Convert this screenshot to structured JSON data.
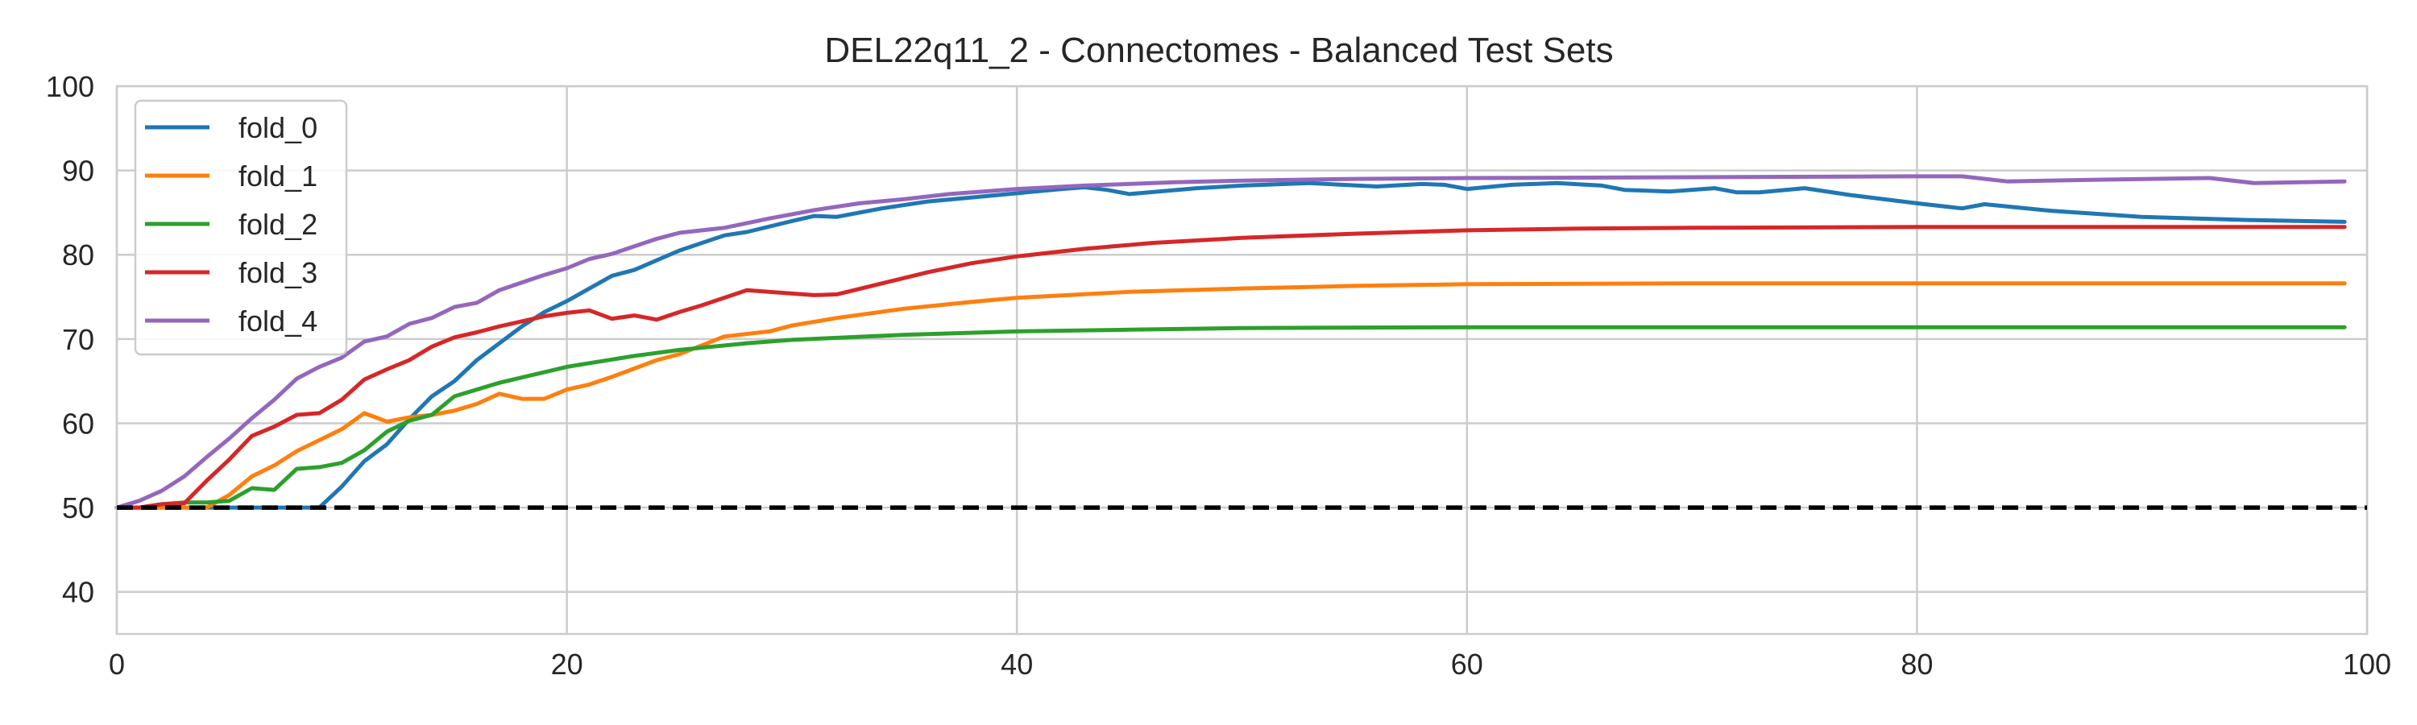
{
  "chart_data": {
    "type": "line",
    "title": "DEL22q11_2 - Connectomes - Balanced Test Sets",
    "xlabel": "",
    "ylabel": "",
    "xlim": [
      0,
      100
    ],
    "ylim": [
      35,
      100
    ],
    "xticks": [
      0,
      20,
      40,
      60,
      80,
      100
    ],
    "yticks": [
      40,
      50,
      60,
      70,
      80,
      90,
      100
    ],
    "grid": true,
    "legend": "top-left",
    "reference_line": {
      "y": 50,
      "style": "dashed",
      "color": "#000000"
    },
    "series": [
      {
        "name": "fold_0",
        "color": "#1f77b4",
        "points": [
          [
            0,
            50
          ],
          [
            5,
            50
          ],
          [
            9,
            50
          ],
          [
            10,
            52.5
          ],
          [
            11,
            55.5
          ],
          [
            12,
            57.5
          ],
          [
            13,
            60.5
          ],
          [
            14,
            63.2
          ],
          [
            15,
            65
          ],
          [
            16,
            67.5
          ],
          [
            18,
            71.5
          ],
          [
            19,
            73.2
          ],
          [
            20,
            74.5
          ],
          [
            22,
            77.5
          ],
          [
            23,
            78.2
          ],
          [
            25,
            80.5
          ],
          [
            27,
            82.3
          ],
          [
            28,
            82.7
          ],
          [
            30,
            84
          ],
          [
            31,
            84.6
          ],
          [
            32,
            84.5
          ],
          [
            34,
            85.5
          ],
          [
            36,
            86.3
          ],
          [
            38,
            86.8
          ],
          [
            40,
            87.3
          ],
          [
            42,
            87.8
          ],
          [
            43,
            88
          ],
          [
            44,
            87.7
          ],
          [
            45,
            87.2
          ],
          [
            48,
            87.9
          ],
          [
            50,
            88.2
          ],
          [
            53,
            88.5
          ],
          [
            56,
            88.1
          ],
          [
            58,
            88.4
          ],
          [
            59,
            88.3
          ],
          [
            60,
            87.8
          ],
          [
            62,
            88.3
          ],
          [
            64,
            88.5
          ],
          [
            66,
            88.2
          ],
          [
            67,
            87.7
          ],
          [
            69,
            87.5
          ],
          [
            71,
            87.9
          ],
          [
            72,
            87.4
          ],
          [
            73,
            87.4
          ],
          [
            75,
            87.9
          ],
          [
            77,
            87.1
          ],
          [
            80,
            86.1
          ],
          [
            82,
            85.5
          ],
          [
            83,
            86
          ],
          [
            86,
            85.2
          ],
          [
            90,
            84.5
          ],
          [
            95,
            84.1
          ],
          [
            99,
            83.9
          ]
        ]
      },
      {
        "name": "fold_1",
        "color": "#ff7f0e",
        "points": [
          [
            0,
            50
          ],
          [
            4,
            50
          ],
          [
            5,
            51.5
          ],
          [
            6,
            53.7
          ],
          [
            7,
            55
          ],
          [
            8,
            56.7
          ],
          [
            9,
            58
          ],
          [
            10,
            59.3
          ],
          [
            11,
            61.2
          ],
          [
            12,
            60.2
          ],
          [
            13,
            60.7
          ],
          [
            14,
            61
          ],
          [
            15,
            61.5
          ],
          [
            16,
            62.3
          ],
          [
            17,
            63.5
          ],
          [
            18,
            62.9
          ],
          [
            19,
            62.9
          ],
          [
            20,
            64
          ],
          [
            21,
            64.6
          ],
          [
            22,
            65.5
          ],
          [
            24,
            67.5
          ],
          [
            25,
            68.2
          ],
          [
            27,
            70.3
          ],
          [
            29,
            70.9
          ],
          [
            30,
            71.6
          ],
          [
            32,
            72.5
          ],
          [
            35,
            73.6
          ],
          [
            38,
            74.4
          ],
          [
            40,
            74.9
          ],
          [
            45,
            75.6
          ],
          [
            50,
            76
          ],
          [
            55,
            76.3
          ],
          [
            60,
            76.5
          ],
          [
            70,
            76.6
          ],
          [
            80,
            76.6
          ],
          [
            90,
            76.6
          ],
          [
            99,
            76.6
          ]
        ]
      },
      {
        "name": "fold_2",
        "color": "#2ca02c",
        "points": [
          [
            0,
            50
          ],
          [
            1,
            50
          ],
          [
            2,
            50.4
          ],
          [
            3,
            50.6
          ],
          [
            4,
            50.6
          ],
          [
            5,
            50.8
          ],
          [
            6,
            52.3
          ],
          [
            7,
            52.1
          ],
          [
            8,
            54.6
          ],
          [
            9,
            54.8
          ],
          [
            10,
            55.3
          ],
          [
            11,
            56.8
          ],
          [
            12,
            59
          ],
          [
            13,
            60.3
          ],
          [
            14,
            61
          ],
          [
            15,
            63.2
          ],
          [
            17,
            64.8
          ],
          [
            20,
            66.7
          ],
          [
            23,
            68
          ],
          [
            25,
            68.7
          ],
          [
            28,
            69.5
          ],
          [
            30,
            69.9
          ],
          [
            35,
            70.5
          ],
          [
            40,
            70.9
          ],
          [
            45,
            71.1
          ],
          [
            50,
            71.3
          ],
          [
            60,
            71.4
          ],
          [
            70,
            71.4
          ],
          [
            80,
            71.4
          ],
          [
            90,
            71.4
          ],
          [
            99,
            71.4
          ]
        ]
      },
      {
        "name": "fold_3",
        "color": "#d62728",
        "points": [
          [
            0,
            50
          ],
          [
            1,
            50
          ],
          [
            2,
            50.4
          ],
          [
            3,
            50.5
          ],
          [
            4,
            53.2
          ],
          [
            5,
            55.7
          ],
          [
            6,
            58.5
          ],
          [
            7,
            59.6
          ],
          [
            8,
            61
          ],
          [
            9,
            61.2
          ],
          [
            10,
            62.8
          ],
          [
            11,
            65.2
          ],
          [
            12,
            66.4
          ],
          [
            13,
            67.5
          ],
          [
            14,
            69.1
          ],
          [
            15,
            70.2
          ],
          [
            16,
            70.8
          ],
          [
            17,
            71.5
          ],
          [
            18,
            72.1
          ],
          [
            19,
            72.7
          ],
          [
            20,
            73.1
          ],
          [
            21,
            73.4
          ],
          [
            22,
            72.4
          ],
          [
            23,
            72.8
          ],
          [
            24,
            72.3
          ],
          [
            25,
            73.2
          ],
          [
            26,
            74
          ],
          [
            27,
            74.9
          ],
          [
            28,
            75.8
          ],
          [
            30,
            75.4
          ],
          [
            31,
            75.2
          ],
          [
            32,
            75.3
          ],
          [
            34,
            76.6
          ],
          [
            36,
            77.9
          ],
          [
            38,
            79
          ],
          [
            40,
            79.8
          ],
          [
            43,
            80.7
          ],
          [
            46,
            81.4
          ],
          [
            50,
            82
          ],
          [
            55,
            82.5
          ],
          [
            60,
            82.9
          ],
          [
            65,
            83.1
          ],
          [
            70,
            83.2
          ],
          [
            80,
            83.3
          ],
          [
            90,
            83.3
          ],
          [
            99,
            83.3
          ]
        ]
      },
      {
        "name": "fold_4",
        "color": "#9467bd",
        "points": [
          [
            0,
            50
          ],
          [
            1,
            50.8
          ],
          [
            2,
            52
          ],
          [
            3,
            53.7
          ],
          [
            4,
            56
          ],
          [
            5,
            58.2
          ],
          [
            6,
            60.6
          ],
          [
            7,
            62.8
          ],
          [
            8,
            65.3
          ],
          [
            9,
            66.7
          ],
          [
            10,
            67.8
          ],
          [
            11,
            69.7
          ],
          [
            12,
            70.3
          ],
          [
            13,
            71.8
          ],
          [
            14,
            72.5
          ],
          [
            15,
            73.8
          ],
          [
            16,
            74.3
          ],
          [
            17,
            75.8
          ],
          [
            19,
            77.6
          ],
          [
            20,
            78.4
          ],
          [
            21,
            79.5
          ],
          [
            22,
            80.1
          ],
          [
            23,
            81
          ],
          [
            24,
            81.9
          ],
          [
            25,
            82.6
          ],
          [
            27,
            83.2
          ],
          [
            29,
            84.3
          ],
          [
            31,
            85.3
          ],
          [
            33,
            86.1
          ],
          [
            35,
            86.6
          ],
          [
            37,
            87.2
          ],
          [
            40,
            87.8
          ],
          [
            43,
            88.2
          ],
          [
            47,
            88.6
          ],
          [
            50,
            88.8
          ],
          [
            55,
            89
          ],
          [
            60,
            89.1
          ],
          [
            70,
            89.2
          ],
          [
            80,
            89.3
          ],
          [
            82,
            89.3
          ],
          [
            84,
            88.7
          ],
          [
            88,
            88.9
          ],
          [
            93,
            89.1
          ],
          [
            95,
            88.5
          ],
          [
            99,
            88.7
          ]
        ]
      }
    ]
  }
}
